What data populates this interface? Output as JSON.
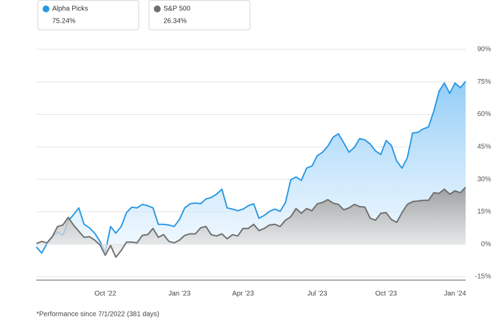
{
  "chart_data": {
    "type": "area-line",
    "footnote": "*Performance since 7/1/2022 (381 days)",
    "categories": [
      null,
      null,
      null,
      null,
      null,
      null,
      null,
      null,
      null,
      null,
      null,
      null,
      null,
      "Oct ’22",
      null,
      null,
      null,
      null,
      null,
      null,
      null,
      null,
      null,
      null,
      null,
      null,
      null,
      "Jan ’23",
      null,
      null,
      null,
      null,
      null,
      null,
      null,
      null,
      null,
      null,
      null,
      "Apr ’23",
      null,
      null,
      null,
      null,
      null,
      null,
      null,
      null,
      null,
      null,
      null,
      null,
      null,
      "Jul ’23",
      null,
      null,
      null,
      null,
      null,
      null,
      null,
      null,
      null,
      null,
      null,
      null,
      "Oct ’23",
      null,
      null,
      null,
      null,
      null,
      null,
      null,
      null,
      null,
      null,
      null,
      null,
      "Jan ’24",
      null,
      null
    ],
    "series": [
      {
        "name": "Alpha Picks",
        "color": "#2b98e3",
        "values": [
          -1.3,
          -4.1,
          0.3,
          3.5,
          5.7,
          4.1,
          10.8,
          13.6,
          16.8,
          9.2,
          7.6,
          5.1,
          1.3,
          -3.8,
          8.2,
          5.1,
          8.2,
          14.6,
          17.1,
          16.8,
          18.4,
          17.8,
          16.8,
          9.2,
          9.2,
          8.9,
          8.2,
          11.4,
          16.8,
          18.7,
          19,
          18.7,
          20.9,
          21.6,
          23.1,
          25.4,
          16.8,
          16.2,
          15.5,
          16.2,
          17.8,
          18.7,
          12,
          13.3,
          15.2,
          16.2,
          15.2,
          19.3,
          29.8,
          31.1,
          29.5,
          35.2,
          36.1,
          40.9,
          42.5,
          45.3,
          49.5,
          51,
          46.9,
          42.5,
          44.7,
          48.8,
          48.2,
          46.3,
          43.1,
          41.5,
          47.9,
          45.6,
          38.4,
          35.2,
          39.9,
          51.4,
          51.7,
          53.3,
          54.2,
          61.5,
          70.7,
          74.5,
          69.7,
          74.5,
          72.3,
          75.24
        ],
        "value_labels": [
          null,
          null,
          null,
          null,
          null,
          null,
          null,
          null,
          null,
          null,
          null,
          null,
          null,
          null,
          null,
          null,
          null,
          null,
          null,
          null,
          null,
          null,
          null,
          null,
          null,
          null,
          null,
          null,
          null,
          null,
          null,
          null,
          null,
          null,
          null,
          null,
          null,
          null,
          null,
          null,
          null,
          null,
          null,
          null,
          null,
          null,
          null,
          null,
          null,
          null,
          null,
          null,
          null,
          null,
          null,
          null,
          null,
          null,
          null,
          null,
          null,
          null,
          null,
          null,
          null,
          null,
          null,
          null,
          null,
          null,
          null,
          null,
          null,
          null,
          null,
          null,
          null,
          null,
          null,
          null,
          null,
          "75.24%"
        ]
      },
      {
        "name": "S&P 500",
        "color": "#6f6f6f",
        "values": [
          0.3,
          1.3,
          0.6,
          3.5,
          8.2,
          8.9,
          12.4,
          8.9,
          6,
          3.2,
          3.5,
          1.9,
          -0.3,
          -5.1,
          -0.6,
          -6,
          -2.9,
          1,
          1,
          0.6,
          4.1,
          4.4,
          7.3,
          3.2,
          4.4,
          1.3,
          0.6,
          1.9,
          4.1,
          4.8,
          4.8,
          7.6,
          8.2,
          4.4,
          3.8,
          4.8,
          2.5,
          4.4,
          3.8,
          7.3,
          7.3,
          9.2,
          6.3,
          7.3,
          8.9,
          9.2,
          8.2,
          11.1,
          12.7,
          16.5,
          14.3,
          16.5,
          15.5,
          18.7,
          19.3,
          20.6,
          19,
          18.4,
          15.9,
          16.8,
          18.4,
          17.4,
          17.1,
          12,
          11.1,
          14.3,
          14.6,
          11.4,
          10.1,
          14.6,
          18.4,
          19.7,
          20,
          20.3,
          20.3,
          23.8,
          23.5,
          25.4,
          23.1,
          24.7,
          23.8,
          26.34
        ],
        "value_labels": [
          null,
          null,
          null,
          null,
          null,
          null,
          null,
          null,
          null,
          null,
          null,
          null,
          null,
          null,
          null,
          null,
          null,
          null,
          null,
          null,
          null,
          null,
          null,
          null,
          null,
          null,
          null,
          null,
          null,
          null,
          null,
          null,
          null,
          null,
          null,
          null,
          null,
          null,
          null,
          null,
          null,
          null,
          null,
          null,
          null,
          null,
          null,
          null,
          null,
          null,
          null,
          null,
          null,
          null,
          null,
          null,
          null,
          null,
          null,
          null,
          null,
          null,
          null,
          null,
          null,
          null,
          null,
          null,
          null,
          null,
          null,
          null,
          null,
          null,
          null,
          null,
          null,
          null,
          null,
          null,
          null,
          "26.34%"
        ]
      }
    ],
    "ylim": [
      -15,
      90
    ],
    "yticks": [
      {
        "value": -15,
        "label": "-15%"
      },
      {
        "value": 0,
        "label": "0%"
      },
      {
        "value": 15,
        "label": "15%"
      },
      {
        "value": 30,
        "label": "30%"
      },
      {
        "value": 45,
        "label": "45%"
      },
      {
        "value": 60,
        "label": "60%"
      },
      {
        "value": 75,
        "label": "75%"
      },
      {
        "value": 90,
        "label": "90%"
      }
    ],
    "grid": true
  }
}
